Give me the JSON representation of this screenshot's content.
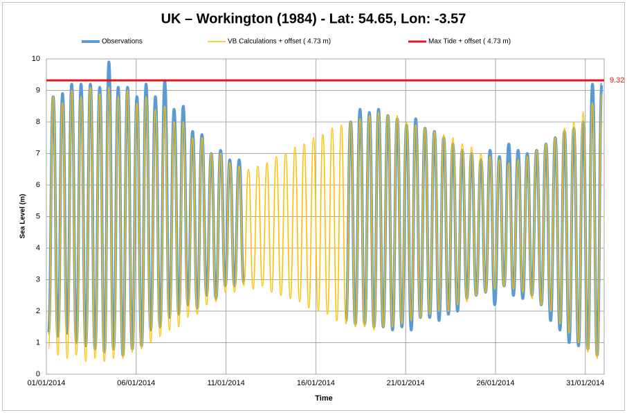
{
  "chart_data": {
    "type": "line",
    "title": "UK – Workington (1984) - Lat: 54.65, Lon: -3.57",
    "xlabel": "Time",
    "ylabel": "Sea Level (m)",
    "x": [
      0.12,
      0.38,
      0.64,
      0.9,
      1.16,
      1.41,
      1.67,
      1.93,
      2.19,
      2.45,
      2.71,
      2.97,
      3.23,
      3.48,
      3.74,
      4.0,
      4.26,
      4.52,
      4.78,
      5.04,
      5.3,
      5.55,
      5.81,
      6.07,
      6.33,
      6.59,
      6.85,
      7.11,
      7.37,
      7.62,
      7.88,
      8.14,
      8.4,
      8.66,
      8.92,
      9.18,
      9.44,
      9.7,
      9.96,
      10.21,
      10.47,
      10.73,
      10.99,
      11.25,
      11.51,
      11.77,
      12.03,
      12.28,
      12.54,
      12.8,
      13.06,
      13.32,
      13.58,
      13.84,
      14.1,
      14.35,
      14.61,
      14.87,
      15.13,
      15.39,
      15.65,
      15.91,
      16.17,
      16.42,
      16.68,
      16.94,
      17.2,
      17.46,
      17.72,
      17.98,
      18.24,
      18.49,
      18.75,
      19.01,
      19.27,
      19.53,
      19.79,
      20.05,
      20.31,
      20.56,
      20.82,
      21.08,
      21.34,
      21.6,
      21.86,
      22.12,
      22.38,
      22.63,
      22.89,
      23.15,
      23.41,
      23.67,
      23.93,
      24.19,
      24.45,
      24.7,
      24.96,
      25.22,
      25.48,
      25.74,
      26.0,
      26.26,
      26.52,
      26.77,
      27.03,
      27.29,
      27.55,
      27.81,
      28.07,
      28.33,
      28.59,
      28.84,
      29.1,
      29.36,
      29.62,
      29.88,
      30.14,
      30.4,
      30.66,
      30.92
    ],
    "series": [
      {
        "name": "Observations",
        "color": "#5b9bd5",
        "values": [
          1.3,
          8.8,
          1.2,
          8.9,
          1.3,
          9.2,
          1.0,
          9.2,
          0.9,
          9.2,
          0.8,
          9.1,
          0.7,
          9.9,
          0.8,
          9.1,
          0.6,
          9.1,
          0.8,
          8.8,
          0.9,
          9.2,
          1.4,
          8.8,
          1.5,
          9.3,
          1.8,
          8.4,
          1.9,
          8.5,
          2.2,
          7.7,
          2.1,
          7.6,
          2.5,
          7.0,
          2.4,
          7.1,
          2.8,
          6.8,
          2.8,
          6.8,
          2.9,
          null,
          null,
          null,
          null,
          null,
          null,
          null,
          null,
          null,
          null,
          null,
          null,
          null,
          null,
          null,
          null,
          null,
          null,
          null,
          null,
          null,
          1.7,
          8.0,
          1.6,
          8.4,
          1.6,
          8.3,
          1.5,
          8.4,
          1.5,
          8.2,
          1.4,
          8.1,
          1.5,
          7.9,
          1.4,
          8.1,
          1.8,
          7.8,
          1.8,
          7.7,
          1.7,
          7.5,
          1.9,
          7.3,
          2.0,
          7.1,
          2.4,
          7.0,
          2.5,
          6.8,
          2.6,
          7.1,
          2.2,
          6.9,
          2.8,
          7.3,
          2.5,
          7.1,
          2.4,
          7.0,
          2.5,
          7.1,
          2.2,
          7.3,
          1.7,
          7.5,
          1.4,
          7.7,
          1.0,
          7.8,
          0.9,
          8.0,
          0.8,
          9.2,
          0.6,
          9.2
        ]
      },
      {
        "name": "VB Calculations + offset ( 4.73 m)",
        "color": "#ffc000",
        "values": [
          0.8,
          8.8,
          0.6,
          8.6,
          0.5,
          9.0,
          0.6,
          8.8,
          0.4,
          9.1,
          0.5,
          8.9,
          0.4,
          9.1,
          0.5,
          8.8,
          0.5,
          9.0,
          0.7,
          8.6,
          0.8,
          8.8,
          1.0,
          8.4,
          1.2,
          8.5,
          1.4,
          8.0,
          1.5,
          8.0,
          1.8,
          7.5,
          1.9,
          7.5,
          2.2,
          7.0,
          2.3,
          7.0,
          2.6,
          6.7,
          2.6,
          6.6,
          2.8,
          6.5,
          2.7,
          6.6,
          2.8,
          6.7,
          2.6,
          6.9,
          2.5,
          7.0,
          2.4,
          7.2,
          2.3,
          7.3,
          2.1,
          7.5,
          2.0,
          7.6,
          1.9,
          7.8,
          1.7,
          7.9,
          1.6,
          8.0,
          1.5,
          8.1,
          1.5,
          8.2,
          1.4,
          8.3,
          1.5,
          8.2,
          1.5,
          8.2,
          1.6,
          8.0,
          1.7,
          7.9,
          1.8,
          7.8,
          1.9,
          7.7,
          2.0,
          7.6,
          2.0,
          7.5,
          2.2,
          7.3,
          2.3,
          7.2,
          2.5,
          7.0,
          2.6,
          6.9,
          2.7,
          6.8,
          2.8,
          6.7,
          2.7,
          6.8,
          2.6,
          6.9,
          2.4,
          7.1,
          2.2,
          7.3,
          2.0,
          7.5,
          1.6,
          7.8,
          1.3,
          8.0,
          1.0,
          8.3,
          0.7,
          8.6,
          0.5,
          8.9
        ]
      }
    ],
    "reference_line": {
      "name": "Max Tide + offset ( 4.73 m)",
      "value": 9.32,
      "color": "#e8141c"
    },
    "xlim": [
      0,
      31.05
    ],
    "ylim": [
      0,
      10
    ],
    "xticks": [
      {
        "value": 0,
        "label": "01/01/2014"
      },
      {
        "value": 5,
        "label": "06/01/2014"
      },
      {
        "value": 10,
        "label": "11/01/2014"
      },
      {
        "value": 15,
        "label": "16/01/2014"
      },
      {
        "value": 20,
        "label": "21/01/2014"
      },
      {
        "value": 25,
        "label": "26/01/2014"
      },
      {
        "value": 30,
        "label": "31/01/2014"
      }
    ],
    "yticks": [
      0,
      1,
      2,
      3,
      4,
      5,
      6,
      7,
      8,
      9,
      10
    ],
    "grid": true,
    "legend": "top"
  }
}
